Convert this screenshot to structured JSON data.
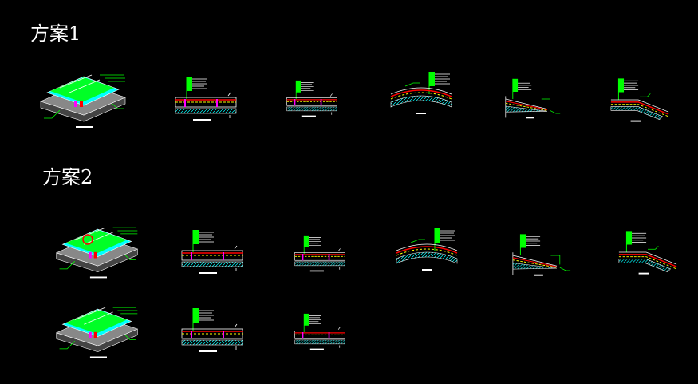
{
  "schemes": [
    {
      "title": "方案1"
    },
    {
      "title": "方案2"
    }
  ]
}
